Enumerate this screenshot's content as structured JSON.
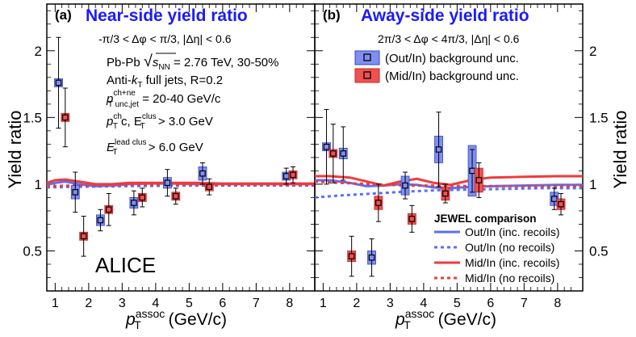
{
  "figure": {
    "y_axis_label": "Yield ratio",
    "x_axis_label_main": "p",
    "x_axis_label_sub": "T",
    "x_axis_label_sup": "assoc",
    "x_axis_label_units": " (GeV/c)",
    "experiment": "ALICE"
  },
  "panel_a": {
    "tag": "(a)",
    "title": "Near-side yield ratio",
    "cut": "-π/3 < Δφ < π/3, |Δη| < 0.6",
    "info": {
      "line1_a": "Pb-Pb ",
      "line1_sqrt": "√",
      "line1_s": "s",
      "line1_nn": "NN",
      "line1_b": " = 2.76 TeV, 30-50%",
      "line2_a": "Anti-",
      "line2_k": "k",
      "line2_t": "T",
      "line2_b": " full jets, R=0.2",
      "line3_p": "p",
      "line3_sup": "ch+ne",
      "line3_sub": "T unc,jet",
      "line3_b": " = 20-40 GeV/c",
      "line4_p": "p",
      "line4_sup": "ch",
      "line4_sub": "T",
      "line4_c": "c, E",
      "line4_sup2": "clus",
      "line4_sub2": "T",
      "line4_b": " > 3.0 GeV",
      "line5_e": "E",
      "line5_sup": "lead clus",
      "line5_sub": "T",
      "line5_b": " > 6.0 GeV"
    }
  },
  "panel_b": {
    "tag": "(b)",
    "title": "Away-side yield ratio",
    "cut": "2π/3 < Δφ < 4π/3, |Δη| < 0.6",
    "legend_unc": [
      "(Out/In) background unc.",
      "(Mid/In) background unc."
    ],
    "jewel_title": "JEWEL comparison",
    "jewel_items": [
      "Out/In (inc. recoils)",
      "Out/In (no recoils)",
      "Mid/In (inc. recoils)",
      "Mid/In (no recoils)"
    ]
  },
  "colors": {
    "out_in": "#5b6ef5",
    "out_in_fill": "#7f8ff0",
    "mid_in": "#ef3b3b",
    "mid_in_fill": "#f05050",
    "title": "#1a1aff"
  },
  "chart_data": [
    {
      "type": "scatter",
      "panel": "a",
      "xlim": [
        0.75,
        8.75
      ],
      "ylim": [
        0.2,
        2.35
      ],
      "x_ticks": [
        1,
        2,
        3,
        4,
        5,
        6,
        7,
        8
      ],
      "y_ticks": [
        0.5,
        1,
        1.5,
        2
      ],
      "series": [
        {
          "name": "Out/In",
          "x": [
            1.1,
            1.6,
            2.35,
            3.35,
            4.35,
            5.4,
            7.9
          ],
          "y": [
            1.76,
            0.94,
            0.73,
            0.86,
            1.01,
            1.08,
            1.06
          ],
          "err": [
            0.34,
            0.15,
            0.08,
            0.09,
            0.1,
            0.08,
            0.06
          ],
          "sys": [
            0.02,
            0.05,
            0.04,
            0.04,
            0.04,
            0.05,
            0.03
          ]
        },
        {
          "name": "Mid/In",
          "x": [
            1.3,
            1.85,
            2.6,
            3.6,
            4.6,
            5.6,
            8.1
          ],
          "y": [
            1.5,
            0.61,
            0.81,
            0.9,
            0.91,
            0.98,
            1.07
          ],
          "err": [
            0.22,
            0.15,
            0.12,
            0.07,
            0.06,
            0.06,
            0.06
          ],
          "sys": [
            0.02,
            0.03,
            0.03,
            0.03,
            0.03,
            0.03,
            0.02
          ]
        }
      ],
      "models": [
        {
          "name": "Out/In (inc. recoils)",
          "x": [
            0.75,
            1.0,
            1.3,
            1.7,
            2.2,
            2.7,
            3.2,
            3.8,
            4.5,
            5.2,
            6.0,
            7.0,
            8.0,
            8.75
          ],
          "y": [
            0.995,
            1.01,
            1.02,
            1.0,
            0.985,
            0.99,
            1.0,
            1.005,
            1.005,
            1.0,
            1.0,
            1.0,
            1.0,
            1.0
          ]
        },
        {
          "name": "Out/In (no recoils)",
          "x": [
            0.75,
            1.5,
            3.0,
            5.0,
            7.0,
            8.75
          ],
          "y": [
            0.975,
            0.98,
            0.985,
            0.99,
            0.99,
            0.99
          ]
        },
        {
          "name": "Mid/In (inc. recoils)",
          "x": [
            0.75,
            1.0,
            1.3,
            1.7,
            2.2,
            2.7,
            3.2,
            3.8,
            4.5,
            5.2,
            6.0,
            7.0,
            8.0,
            8.75
          ],
          "y": [
            1.01,
            1.03,
            1.035,
            1.02,
            1.0,
            1.0,
            1.01,
            1.01,
            1.01,
            1.01,
            1.005,
            1.005,
            1.005,
            1.005
          ]
        },
        {
          "name": "Mid/In (no recoils)",
          "x": [
            0.75,
            1.5,
            3.0,
            5.0,
            7.0,
            8.75
          ],
          "y": [
            0.985,
            0.99,
            0.995,
            0.995,
            0.995,
            0.995
          ]
        }
      ]
    },
    {
      "type": "scatter",
      "panel": "b",
      "xlim": [
        0.75,
        8.75
      ],
      "ylim": [
        0.2,
        2.35
      ],
      "x_ticks": [
        1,
        2,
        3,
        4,
        5,
        6,
        7,
        8
      ],
      "y_ticks": [
        0.5,
        1,
        1.5,
        2
      ],
      "series": [
        {
          "name": "Out/In",
          "x": [
            1.1,
            1.6,
            2.45,
            3.45,
            4.45,
            5.45,
            7.9
          ],
          "y": [
            1.28,
            1.23,
            0.45,
            0.99,
            1.26,
            1.1,
            0.89
          ],
          "err": [
            0.28,
            0.2,
            0.14,
            0.1,
            0.28,
            0.16,
            0.08
          ],
          "sys": [
            0.02,
            0.04,
            0.05,
            0.07,
            0.1,
            0.19,
            0.05
          ]
        },
        {
          "name": "Mid/In",
          "x": [
            1.3,
            1.85,
            2.65,
            3.65,
            4.65,
            5.65,
            8.1
          ],
          "y": [
            1.23,
            0.46,
            0.86,
            0.74,
            0.93,
            1.03,
            0.85
          ],
          "err": [
            0.22,
            0.15,
            0.14,
            0.1,
            0.07,
            0.13,
            0.08
          ],
          "sys": [
            0.02,
            0.04,
            0.05,
            0.04,
            0.05,
            0.09,
            0.04
          ]
        }
      ],
      "models": [
        {
          "name": "Out/In (inc. recoils)",
          "x": [
            0.75,
            1.2,
            1.8,
            2.3,
            2.8,
            3.3,
            3.8,
            4.3,
            4.8,
            5.4,
            6.0,
            7.0,
            8.0,
            8.75
          ],
          "y": [
            1.03,
            1.03,
            1.01,
            0.985,
            0.99,
            1.0,
            0.995,
            0.975,
            0.97,
            0.98,
            0.985,
            0.99,
            0.995,
            0.995
          ]
        },
        {
          "name": "Out/In (no recoils)",
          "x": [
            0.75,
            1.5,
            2.5,
            3.5,
            4.5,
            5.5,
            6.5,
            7.5,
            8.75
          ],
          "y": [
            0.9,
            0.915,
            0.93,
            0.945,
            0.955,
            0.96,
            0.965,
            0.97,
            0.97
          ]
        },
        {
          "name": "Mid/In (inc. recoils)",
          "x": [
            0.75,
            1.2,
            1.8,
            2.3,
            2.8,
            3.3,
            3.8,
            4.3,
            4.8,
            5.4,
            6.0,
            7.0,
            8.0,
            8.75
          ],
          "y": [
            1.06,
            1.06,
            1.05,
            1.02,
            0.99,
            1.02,
            1.04,
            1.01,
            0.995,
            1.03,
            1.05,
            1.055,
            1.06,
            1.06
          ]
        },
        {
          "name": "Mid/In (no recoils)",
          "x": [
            0.75,
            1.5,
            2.5,
            3.5,
            4.5,
            5.5,
            6.5,
            7.5,
            8.75
          ],
          "y": [
            1.02,
            1.01,
            1.0,
            0.99,
            0.99,
            0.985,
            0.985,
            0.985,
            0.985
          ]
        }
      ]
    }
  ]
}
